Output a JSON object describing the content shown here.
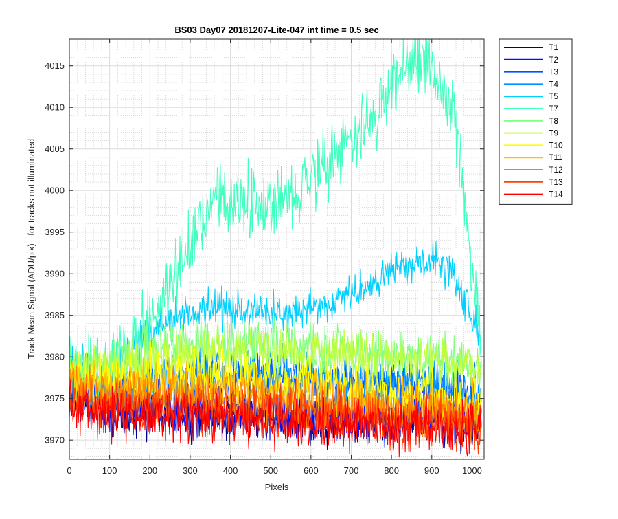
{
  "chart_data": {
    "type": "line",
    "title": "BS03 Day07 20181207-Lite-047 int time = 0.5 sec",
    "xlabel": "Pixels",
    "ylabel": "Track Mean Signal (ADU/pix) - for tracks not illuminated",
    "xlim": [
      0,
      1030
    ],
    "ylim": [
      3967.7,
      4018.2
    ],
    "xticks": [
      0,
      100,
      200,
      300,
      400,
      500,
      600,
      700,
      800,
      900,
      1000
    ],
    "yticks": [
      3970,
      3975,
      3980,
      3985,
      3990,
      3995,
      4000,
      4005,
      4010,
      4015
    ],
    "grid": "major and minor",
    "legend_position": "outside-right-top",
    "series": [
      {
        "name": "T1",
        "color": "#00008f",
        "points": [
          [
            0,
            3975
          ],
          [
            100,
            3973.6
          ],
          [
            200,
            3973.2
          ],
          [
            300,
            3973
          ],
          [
            400,
            3972.8
          ],
          [
            500,
            3972.6
          ],
          [
            600,
            3972.5
          ],
          [
            700,
            3972.3
          ],
          [
            800,
            3972.2
          ],
          [
            900,
            3972
          ],
          [
            1000,
            3971.9
          ],
          [
            1024,
            3972
          ]
        ]
      },
      {
        "name": "T2",
        "color": "#0010ff",
        "points": [
          [
            0,
            3975.3
          ],
          [
            100,
            3974
          ],
          [
            200,
            3973.7
          ],
          [
            300,
            3973.5
          ],
          [
            400,
            3973.3
          ],
          [
            500,
            3973.2
          ],
          [
            600,
            3973.1
          ],
          [
            700,
            3973
          ],
          [
            800,
            3972.9
          ],
          [
            900,
            3972.8
          ],
          [
            1000,
            3972.8
          ],
          [
            1024,
            3972.8
          ]
        ]
      },
      {
        "name": "T3",
        "color": "#0050ff",
        "points": [
          [
            0,
            3976
          ],
          [
            100,
            3976
          ],
          [
            200,
            3976.5
          ],
          [
            300,
            3977
          ],
          [
            400,
            3977.3
          ],
          [
            500,
            3977.5
          ],
          [
            600,
            3977.3
          ],
          [
            700,
            3977
          ],
          [
            800,
            3976.8
          ],
          [
            900,
            3976.2
          ],
          [
            1000,
            3975.5
          ],
          [
            1024,
            3975
          ]
        ]
      },
      {
        "name": "T4",
        "color": "#0090ff",
        "points": [
          [
            0,
            3977
          ],
          [
            100,
            3977
          ],
          [
            200,
            3977.5
          ],
          [
            300,
            3978
          ],
          [
            400,
            3978.3
          ],
          [
            500,
            3978
          ],
          [
            600,
            3977.6
          ],
          [
            700,
            3977.3
          ],
          [
            800,
            3977
          ],
          [
            900,
            3976.5
          ],
          [
            1000,
            3975.5
          ],
          [
            1024,
            3975
          ]
        ]
      },
      {
        "name": "T5",
        "color": "#00d0ff",
        "points": [
          [
            0,
            3979
          ],
          [
            50,
            3978.5
          ],
          [
            100,
            3979
          ],
          [
            150,
            3980.5
          ],
          [
            200,
            3983
          ],
          [
            250,
            3984.5
          ],
          [
            300,
            3985.5
          ],
          [
            350,
            3986
          ],
          [
            400,
            3985.8
          ],
          [
            450,
            3985.5
          ],
          [
            500,
            3985.3
          ],
          [
            550,
            3985.5
          ],
          [
            600,
            3986
          ],
          [
            650,
            3986.5
          ],
          [
            700,
            3987.5
          ],
          [
            750,
            3989
          ],
          [
            800,
            3990.5
          ],
          [
            850,
            3991.5
          ],
          [
            900,
            3991.5
          ],
          [
            925,
            3991
          ],
          [
            950,
            3990
          ],
          [
            975,
            3987.5
          ],
          [
            1000,
            3985
          ],
          [
            1024,
            3982
          ]
        ]
      },
      {
        "name": "T7",
        "color": "#40ffbf",
        "points": [
          [
            0,
            3979
          ],
          [
            50,
            3978.5
          ],
          [
            100,
            3979
          ],
          [
            150,
            3981
          ],
          [
            200,
            3984
          ],
          [
            225,
            3986.5
          ],
          [
            250,
            3988
          ],
          [
            275,
            3991
          ],
          [
            300,
            3994
          ],
          [
            325,
            3996
          ],
          [
            350,
            3998
          ],
          [
            375,
            3999.5
          ],
          [
            400,
            3998.5
          ],
          [
            450,
            3998.5
          ],
          [
            500,
            3998.5
          ],
          [
            550,
            3999.8
          ],
          [
            600,
            4002
          ],
          [
            650,
            4004
          ],
          [
            700,
            4006
          ],
          [
            750,
            4008.5
          ],
          [
            800,
            4012
          ],
          [
            825,
            4014
          ],
          [
            850,
            4015
          ],
          [
            875,
            4015
          ],
          [
            900,
            4014.5
          ],
          [
            925,
            4012.5
          ],
          [
            950,
            4010
          ],
          [
            975,
            4002
          ],
          [
            990,
            3994
          ],
          [
            1000,
            3990
          ],
          [
            1010,
            3986
          ],
          [
            1024,
            3980
          ]
        ]
      },
      {
        "name": "T8",
        "color": "#80ff80",
        "points": [
          [
            0,
            3978.5
          ],
          [
            100,
            3979
          ],
          [
            200,
            3980.5
          ],
          [
            300,
            3981.5
          ],
          [
            400,
            3981.5
          ],
          [
            500,
            3981.5
          ],
          [
            600,
            3981
          ],
          [
            700,
            3980.6
          ],
          [
            800,
            3980.3
          ],
          [
            900,
            3980.2
          ],
          [
            1000,
            3979.5
          ],
          [
            1024,
            3978.5
          ]
        ]
      },
      {
        "name": "T9",
        "color": "#bfff40",
        "points": [
          [
            0,
            3978
          ],
          [
            100,
            3978.5
          ],
          [
            200,
            3979.5
          ],
          [
            300,
            3980.5
          ],
          [
            400,
            3980.5
          ],
          [
            500,
            3980.3
          ],
          [
            600,
            3980
          ],
          [
            700,
            3980
          ],
          [
            800,
            3979.8
          ],
          [
            900,
            3979.5
          ],
          [
            1000,
            3979
          ],
          [
            1024,
            3978
          ]
        ]
      },
      {
        "name": "T10",
        "color": "#ffff00",
        "points": [
          [
            0,
            3977.5
          ],
          [
            100,
            3977.2
          ],
          [
            200,
            3977.5
          ],
          [
            300,
            3978
          ],
          [
            400,
            3977.8
          ],
          [
            500,
            3977.2
          ],
          [
            600,
            3976.8
          ],
          [
            700,
            3976.2
          ],
          [
            800,
            3975.5
          ],
          [
            900,
            3975
          ],
          [
            1000,
            3974.6
          ],
          [
            1024,
            3974.3
          ]
        ]
      },
      {
        "name": "T11",
        "color": "#ffbf00",
        "points": [
          [
            0,
            3976.8
          ],
          [
            100,
            3976.3
          ],
          [
            200,
            3976.3
          ],
          [
            300,
            3976.5
          ],
          [
            400,
            3976.2
          ],
          [
            500,
            3975.8
          ],
          [
            600,
            3975.4
          ],
          [
            700,
            3975
          ],
          [
            800,
            3974.5
          ],
          [
            900,
            3974
          ],
          [
            1000,
            3973.6
          ],
          [
            1024,
            3973.5
          ]
        ]
      },
      {
        "name": "T12",
        "color": "#ff8000",
        "points": [
          [
            0,
            3976
          ],
          [
            100,
            3975.3
          ],
          [
            200,
            3975.3
          ],
          [
            300,
            3975.3
          ],
          [
            400,
            3975
          ],
          [
            500,
            3974.6
          ],
          [
            600,
            3974.3
          ],
          [
            700,
            3973.8
          ],
          [
            800,
            3973.3
          ],
          [
            900,
            3973
          ],
          [
            1000,
            3972.7
          ],
          [
            1024,
            3972.5
          ]
        ]
      },
      {
        "name": "T13",
        "color": "#ff4000",
        "points": [
          [
            0,
            3975
          ],
          [
            100,
            3974.2
          ],
          [
            200,
            3974
          ],
          [
            300,
            3974
          ],
          [
            400,
            3973.8
          ],
          [
            500,
            3973.4
          ],
          [
            600,
            3973.2
          ],
          [
            700,
            3972.8
          ],
          [
            800,
            3972.5
          ],
          [
            900,
            3972.2
          ],
          [
            1000,
            3972
          ],
          [
            1024,
            3972
          ]
        ]
      },
      {
        "name": "T14",
        "color": "#ff0000",
        "points": [
          [
            0,
            3974
          ],
          [
            100,
            3973.3
          ],
          [
            200,
            3973
          ],
          [
            300,
            3972.9
          ],
          [
            400,
            3972.7
          ],
          [
            500,
            3972.4
          ],
          [
            600,
            3972.2
          ],
          [
            700,
            3972
          ],
          [
            800,
            3971.8
          ],
          [
            900,
            3971.6
          ],
          [
            1000,
            3971.4
          ],
          [
            1024,
            3971.4
          ]
        ]
      }
    ]
  }
}
